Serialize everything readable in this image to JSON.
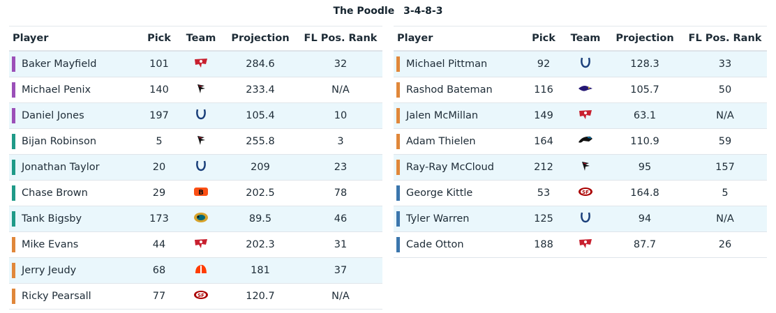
{
  "title": {
    "team": "The Poodle",
    "record": "3-4-8-3"
  },
  "headers": {
    "player": "Player",
    "pick": "Pick",
    "team": "Team",
    "projection": "Projection",
    "rank": "FL Pos. Rank"
  },
  "colors": {
    "QB": "#9b4fb8",
    "RB": "#1f9a88",
    "WR": "#e0873a",
    "TE": "#3b76ad"
  },
  "left": [
    {
      "name": "Baker Mayfield",
      "pos": "QB",
      "pick": "101",
      "team": "TB",
      "projection": "284.6",
      "rank": "32"
    },
    {
      "name": "Michael Penix",
      "pos": "QB",
      "pick": "140",
      "team": "ATL",
      "projection": "233.4",
      "rank": "N/A"
    },
    {
      "name": "Daniel Jones",
      "pos": "QB",
      "pick": "197",
      "team": "IND",
      "projection": "105.4",
      "rank": "10"
    },
    {
      "name": "Bijan Robinson",
      "pos": "RB",
      "pick": "5",
      "team": "ATL",
      "projection": "255.8",
      "rank": "3"
    },
    {
      "name": "Jonathan Taylor",
      "pos": "RB",
      "pick": "20",
      "team": "IND",
      "projection": "209",
      "rank": "23"
    },
    {
      "name": "Chase Brown",
      "pos": "RB",
      "pick": "29",
      "team": "CIN",
      "projection": "202.5",
      "rank": "78"
    },
    {
      "name": "Tank Bigsby",
      "pos": "RB",
      "pick": "173",
      "team": "JAX",
      "projection": "89.5",
      "rank": "46"
    },
    {
      "name": "Mike Evans",
      "pos": "WR",
      "pick": "44",
      "team": "TB",
      "projection": "202.3",
      "rank": "31"
    },
    {
      "name": "Jerry Jeudy",
      "pos": "WR",
      "pick": "68",
      "team": "CLE",
      "projection": "181",
      "rank": "37"
    },
    {
      "name": "Ricky Pearsall",
      "pos": "WR",
      "pick": "77",
      "team": "SF",
      "projection": "120.7",
      "rank": "N/A"
    }
  ],
  "right": [
    {
      "name": "Michael Pittman",
      "pos": "WR",
      "pick": "92",
      "team": "IND",
      "projection": "128.3",
      "rank": "33"
    },
    {
      "name": "Rashod Bateman",
      "pos": "WR",
      "pick": "116",
      "team": "BAL",
      "projection": "105.7",
      "rank": "50"
    },
    {
      "name": "Jalen McMillan",
      "pos": "WR",
      "pick": "149",
      "team": "TB",
      "projection": "63.1",
      "rank": "N/A"
    },
    {
      "name": "Adam Thielen",
      "pos": "WR",
      "pick": "164",
      "team": "CAR",
      "projection": "110.9",
      "rank": "59"
    },
    {
      "name": "Ray-Ray McCloud",
      "pos": "WR",
      "pick": "212",
      "team": "ATL",
      "projection": "95",
      "rank": "157"
    },
    {
      "name": "George Kittle",
      "pos": "TE",
      "pick": "53",
      "team": "SF",
      "projection": "164.8",
      "rank": "5"
    },
    {
      "name": "Tyler Warren",
      "pos": "TE",
      "pick": "125",
      "team": "IND",
      "projection": "94",
      "rank": "N/A"
    },
    {
      "name": "Cade Otton",
      "pos": "TE",
      "pick": "188",
      "team": "TB",
      "projection": "87.7",
      "rank": "26"
    }
  ]
}
